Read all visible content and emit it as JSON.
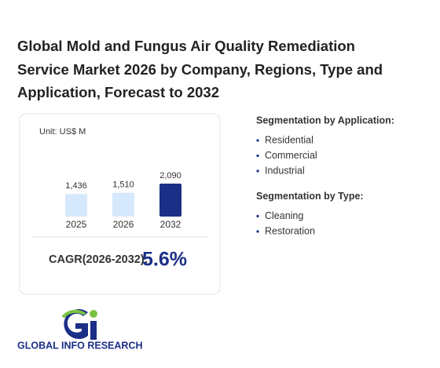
{
  "chart_data": {
    "type": "bar",
    "title": "Global Mold and Fungus Air Quality Remediation Service Market 2026 by Company, Regions, Type and Application, Forecast to 2032",
    "unit": "Unit: US$ M",
    "categories": [
      "2025",
      "2026",
      "2032"
    ],
    "values": [
      1436,
      1510,
      2090
    ],
    "value_labels": [
      "1,436",
      "1,510",
      "2,090"
    ],
    "colors": [
      "#d6e8fb",
      "#d6e8fb",
      "#1b2f86"
    ],
    "cagr_label": "CAGR(2026-2032):",
    "cagr_value": "5.6%"
  },
  "segmentation": [
    {
      "heading": "Segmentation by Application:",
      "items": [
        "Residential",
        "Commercial",
        "Industrial"
      ]
    },
    {
      "heading": "Segmentation by Type:",
      "items": [
        "Cleaning",
        "Restoration"
      ]
    }
  ],
  "logo_text": "GLOBAL INFO RESEARCH"
}
